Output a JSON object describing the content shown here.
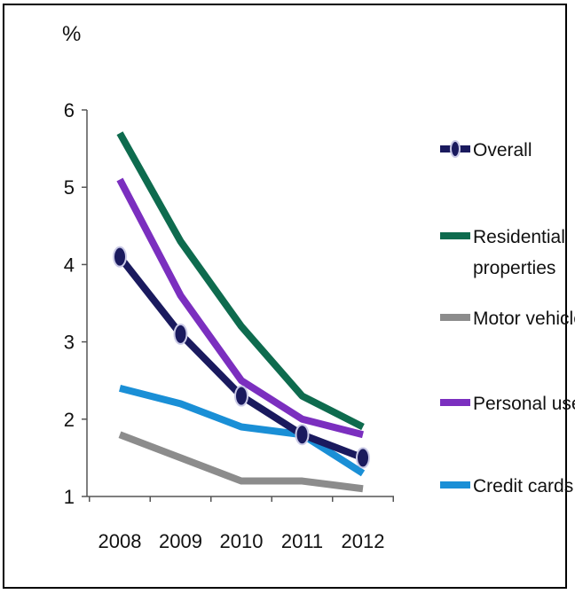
{
  "chart_data": {
    "type": "line",
    "title": "",
    "ylabel": "%",
    "xlabel": "",
    "x": [
      "2008",
      "2009",
      "2010",
      "2011",
      "2012"
    ],
    "ylim": [
      1,
      6
    ],
    "yticks": [
      "1",
      "2",
      "3",
      "4",
      "5",
      "6"
    ],
    "grid": false,
    "legend_position": "right",
    "series": [
      {
        "name": "Overall",
        "color": "#1a1a5e",
        "marker": "circle",
        "values": [
          4.1,
          3.1,
          2.3,
          1.8,
          1.5
        ]
      },
      {
        "name": "Residential properties",
        "color": "#0e6b4e",
        "values": [
          5.7,
          4.3,
          3.2,
          2.3,
          1.9
        ]
      },
      {
        "name": "Motor vehicles",
        "color": "#8c8c8c",
        "values": [
          1.8,
          1.5,
          1.2,
          1.2,
          1.1
        ]
      },
      {
        "name": "Personal use",
        "color": "#7b2fbf",
        "values": [
          5.1,
          3.6,
          2.5,
          2.0,
          1.8
        ]
      },
      {
        "name": "Credit cards",
        "color": "#1a8fd6",
        "values": [
          2.4,
          2.2,
          1.9,
          1.8,
          1.3
        ]
      }
    ],
    "legend": [
      {
        "lines": [
          "Overall"
        ]
      },
      {
        "lines": [
          "Residential",
          "properties"
        ]
      },
      {
        "lines": [
          "Motor vehicles"
        ]
      },
      {
        "lines": [
          "Personal use"
        ]
      },
      {
        "lines": [
          "Credit cards"
        ]
      }
    ]
  }
}
